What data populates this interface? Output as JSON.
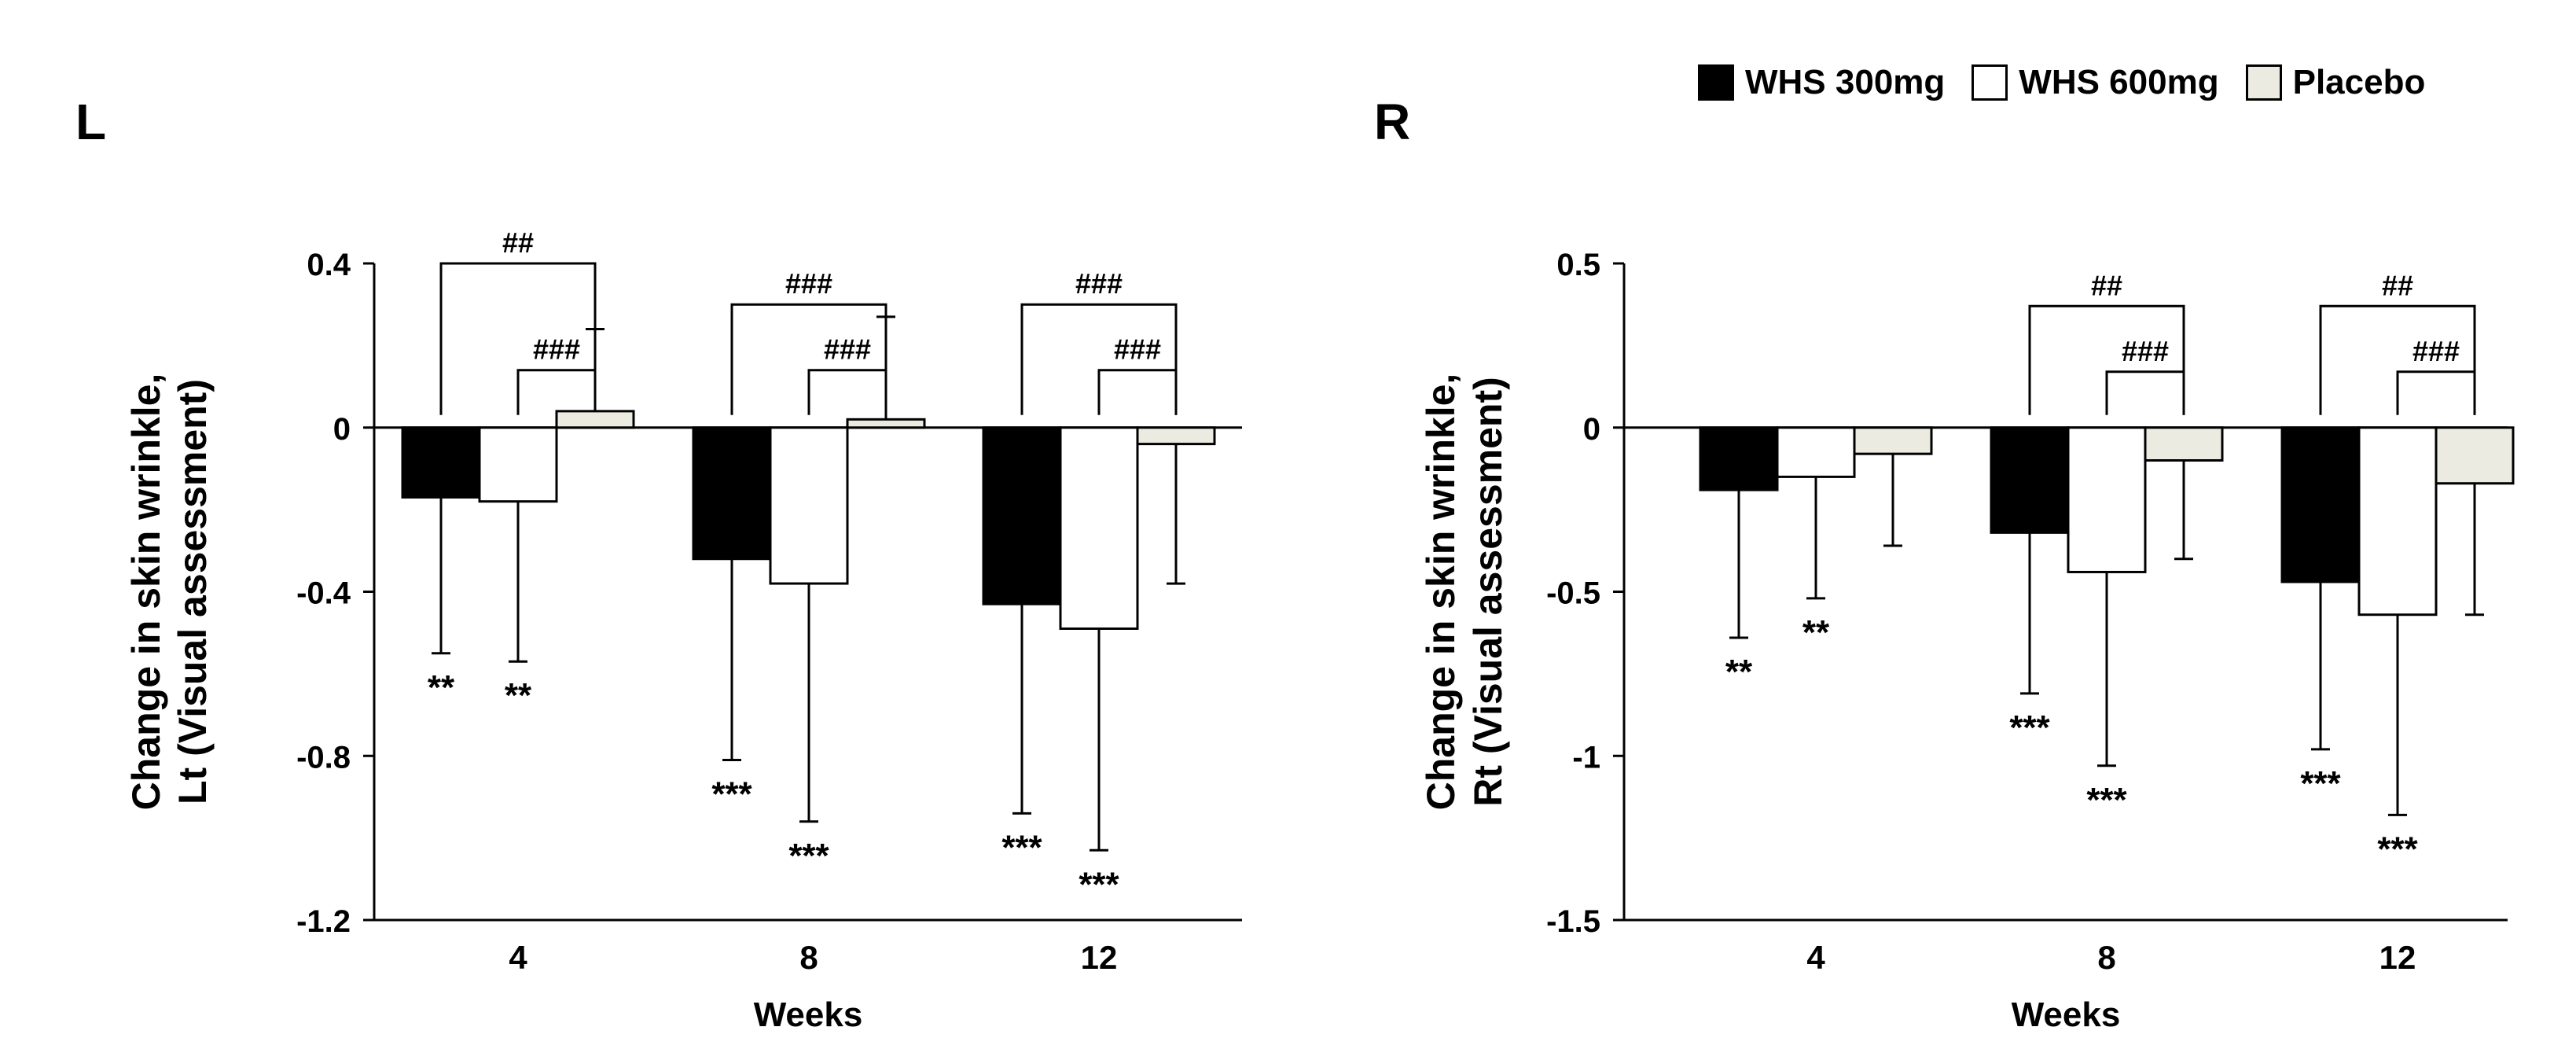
{
  "panels": [
    {
      "letter": "L"
    },
    {
      "letter": "R"
    }
  ],
  "legend": [
    {
      "label": "WHS 300mg",
      "color": "#000000"
    },
    {
      "label": "WHS 600mg",
      "color": "#ffffff"
    },
    {
      "label": "Placebo",
      "color": "#ecebe1"
    }
  ],
  "chart_data": [
    {
      "type": "bar",
      "panel": "L",
      "categories": [
        "4",
        "8",
        "12"
      ],
      "xlabel": "Weeks",
      "ylabel": [
        "Change in skin wrinkle,",
        "Lt (Visual assessment)"
      ],
      "ylim": [
        -1.2,
        0.4
      ],
      "yticks": [
        0.4,
        0,
        -0.4,
        -0.8,
        -1.2
      ],
      "ytick_labels": [
        "0.4",
        "0",
        "-0.4",
        "-0.8",
        "-1.2"
      ],
      "grid": false,
      "legend_position": "top-right",
      "series": [
        {
          "name": "WHS 300mg",
          "values": [
            -0.17,
            -0.32,
            -0.43
          ],
          "error": [
            0.38,
            0.49,
            0.51
          ],
          "sig": [
            "**",
            "***",
            "***"
          ]
        },
        {
          "name": "WHS 600mg",
          "values": [
            -0.18,
            -0.38,
            -0.49
          ],
          "error": [
            0.39,
            0.58,
            0.54
          ],
          "sig": [
            "**",
            "***",
            "***"
          ]
        },
        {
          "name": "Placebo",
          "values": [
            0.04,
            0.02,
            -0.04
          ],
          "error": [
            0.2,
            0.25,
            0.34
          ],
          "sig": [
            "",
            "",
            ""
          ]
        }
      ],
      "brackets": [
        {
          "category": 0,
          "from": 0,
          "to": 2,
          "level": 0.4,
          "label": "##"
        },
        {
          "category": 0,
          "from": 1,
          "to": 2,
          "level": 0.14,
          "label": "###"
        },
        {
          "category": 1,
          "from": 0,
          "to": 2,
          "level": 0.3,
          "label": "###"
        },
        {
          "category": 1,
          "from": 1,
          "to": 2,
          "level": 0.14,
          "label": "###"
        },
        {
          "category": 2,
          "from": 0,
          "to": 2,
          "level": 0.3,
          "label": "###"
        },
        {
          "category": 2,
          "from": 1,
          "to": 2,
          "level": 0.14,
          "label": "###"
        }
      ]
    },
    {
      "type": "bar",
      "panel": "R",
      "categories": [
        "4",
        "8",
        "12"
      ],
      "xlabel": "Weeks",
      "ylabel": [
        "Change in skin wrinkle,",
        "Rt (Visual assessment)"
      ],
      "ylim": [
        -1.5,
        0.5
      ],
      "yticks": [
        0.5,
        0,
        -0.5,
        -1,
        -1.5
      ],
      "ytick_labels": [
        "0.5",
        "0",
        "-0.5",
        "-1",
        "-1.5"
      ],
      "grid": false,
      "legend_position": "top-right",
      "series": [
        {
          "name": "WHS 300mg",
          "values": [
            -0.19,
            -0.32,
            -0.47
          ],
          "error": [
            0.45,
            0.49,
            0.51
          ],
          "sig": [
            "**",
            "***",
            "***"
          ]
        },
        {
          "name": "WHS 600mg",
          "values": [
            -0.15,
            -0.44,
            -0.57
          ],
          "error": [
            0.37,
            0.59,
            0.61
          ],
          "sig": [
            "**",
            "***",
            "***"
          ]
        },
        {
          "name": "Placebo",
          "values": [
            -0.08,
            -0.1,
            -0.17
          ],
          "error": [
            0.28,
            0.3,
            0.4
          ],
          "sig": [
            "",
            "",
            ""
          ]
        }
      ],
      "brackets": [
        {
          "category": 1,
          "from": 0,
          "to": 2,
          "level": 0.37,
          "label": "##"
        },
        {
          "category": 1,
          "from": 1,
          "to": 2,
          "level": 0.17,
          "label": "###"
        },
        {
          "category": 2,
          "from": 0,
          "to": 2,
          "level": 0.37,
          "label": "##"
        },
        {
          "category": 2,
          "from": 1,
          "to": 2,
          "level": 0.17,
          "label": "###"
        }
      ]
    }
  ]
}
